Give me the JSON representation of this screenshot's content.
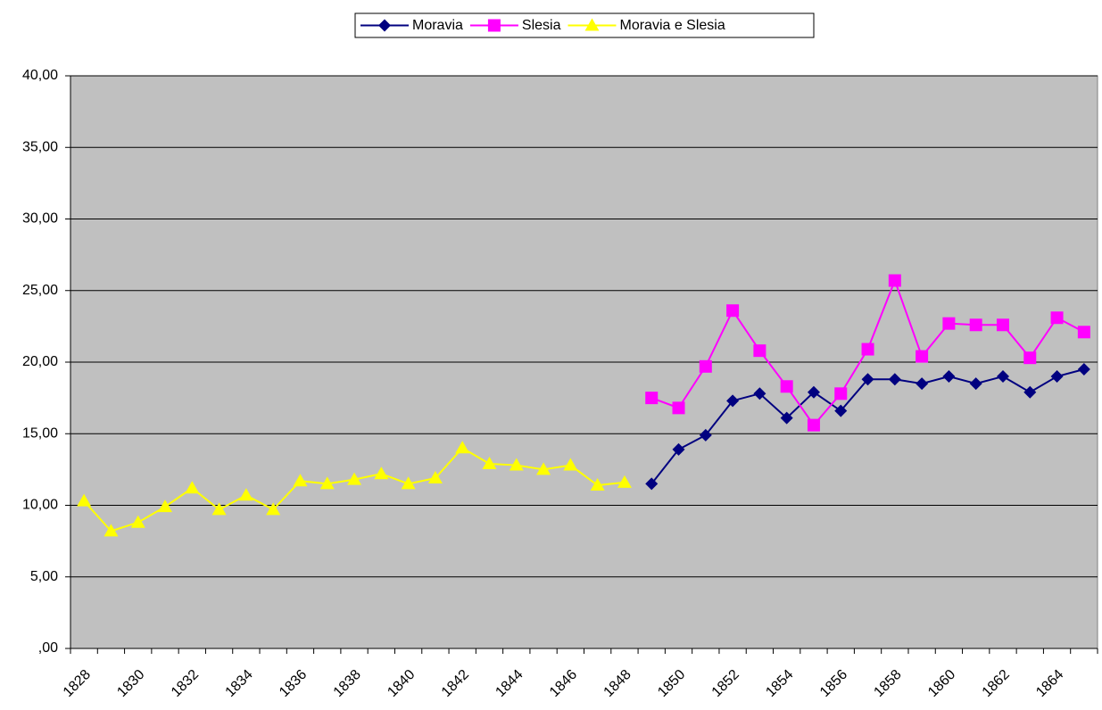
{
  "chart_data": {
    "type": "line",
    "categories": [
      "1828",
      null,
      "1830",
      null,
      "1832",
      null,
      "1834",
      null,
      "1836",
      null,
      "1838",
      null,
      "1840",
      null,
      "1842",
      null,
      "1844",
      null,
      "1846",
      null,
      "1848",
      null,
      "1850",
      null,
      "1852",
      null,
      "1854",
      null,
      "1856",
      null,
      "1858",
      null,
      "1860",
      null,
      "1862",
      null,
      "1864",
      null
    ],
    "series": [
      {
        "name": "Moravia",
        "color": "#000080",
        "marker": "diamond",
        "values": [
          null,
          null,
          null,
          null,
          null,
          null,
          null,
          null,
          null,
          null,
          null,
          null,
          null,
          null,
          null,
          null,
          null,
          null,
          null,
          null,
          null,
          11.5,
          13.9,
          14.9,
          17.3,
          17.8,
          16.1,
          17.9,
          16.6,
          18.8,
          18.8,
          18.5,
          19.0,
          18.5,
          19.0,
          17.9,
          19.0,
          19.5
        ]
      },
      {
        "name": "Slesia",
        "color": "#ff00ff",
        "marker": "square",
        "values": [
          null,
          null,
          null,
          null,
          null,
          null,
          null,
          null,
          null,
          null,
          null,
          null,
          null,
          null,
          null,
          null,
          null,
          null,
          null,
          null,
          null,
          17.5,
          16.8,
          19.7,
          23.6,
          20.8,
          18.3,
          15.6,
          17.8,
          20.9,
          25.7,
          20.4,
          22.7,
          22.6,
          22.6,
          20.3,
          23.1,
          22.1
        ]
      },
      {
        "name": "Moravia e Slesia",
        "color": "#ffff00",
        "marker": "triangle",
        "values": [
          10.3,
          8.2,
          8.8,
          9.9,
          11.2,
          9.7,
          10.7,
          9.7,
          11.7,
          11.5,
          11.8,
          12.2,
          11.5,
          11.9,
          14.0,
          12.9,
          12.8,
          12.5,
          12.8,
          11.4,
          11.6,
          null,
          null,
          null,
          null,
          null,
          null,
          null,
          null,
          null,
          null,
          null,
          null,
          null,
          null,
          null,
          null,
          null
        ]
      }
    ],
    "ylim": [
      0,
      40
    ],
    "yticks": [
      {
        "value": 0,
        "label": ",00"
      },
      {
        "value": 5,
        "label": "5,00"
      },
      {
        "value": 10,
        "label": "10,00"
      },
      {
        "value": 15,
        "label": "15,00"
      },
      {
        "value": 20,
        "label": "20,00"
      },
      {
        "value": 25,
        "label": "25,00"
      },
      {
        "value": 30,
        "label": "30,00"
      },
      {
        "value": 35,
        "label": "35,00"
      },
      {
        "value": 40,
        "label": "40,00"
      }
    ],
    "grid": true,
    "legend": "top",
    "background": "#c0c0c0"
  }
}
